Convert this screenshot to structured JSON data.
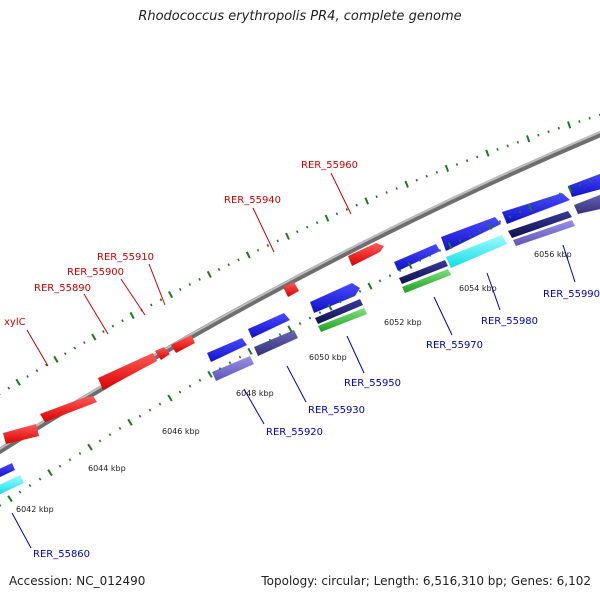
{
  "title": "Rhodococcus erythropolis PR4, complete genome",
  "footer": {
    "accession": "Accession: NC_012490",
    "summary": "Topology: circular; Length: 6,516,310 bp; Genes: 6,102"
  },
  "colors": {
    "backbone": "#8a8a8a",
    "reverse_gene": "#ee1111",
    "forward_gene": "#1a1aee",
    "tick": "#1f7a1f",
    "label_reverse": "#cc0000",
    "label_forward": "#0000bb"
  },
  "scale_labels": [
    "6042 kbp",
    "6044 kbp",
    "6046 kbp",
    "6048 kbp",
    "6050 kbp",
    "6052 kbp",
    "6054 kbp",
    "6056 kbp"
  ],
  "reverse_labels": [
    "xylC",
    "RER_55890",
    "RER_55900",
    "RER_55910",
    "RER_55940",
    "RER_55960"
  ],
  "forward_labels": [
    "RER_55860",
    "RER_55920",
    "RER_55930",
    "RER_55950",
    "RER_55970",
    "RER_55980",
    "RER_55990"
  ]
}
